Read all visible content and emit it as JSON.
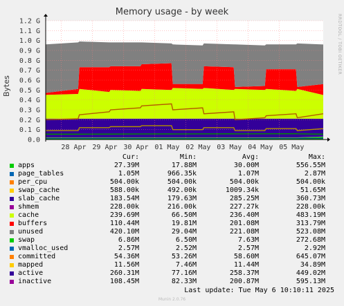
{
  "chart_data": {
    "type": "area",
    "title": "Memory usage - by week",
    "ylabel": "Bytes",
    "side_text": "RRDTOOL / TOBI OETIKER",
    "ylim": [
      0,
      1.2
    ],
    "yticks": [
      {
        "v": 0.0,
        "label": "0.0"
      },
      {
        "v": 0.1,
        "label": "0.1 G"
      },
      {
        "v": 0.2,
        "label": "0.2 G"
      },
      {
        "v": 0.3,
        "label": "0.3 G"
      },
      {
        "v": 0.4,
        "label": "0.4 G"
      },
      {
        "v": 0.5,
        "label": "0.5 G"
      },
      {
        "v": 0.6,
        "label": "0.6 G"
      },
      {
        "v": 0.7,
        "label": "0.7 G"
      },
      {
        "v": 0.8,
        "label": "0.8 G"
      },
      {
        "v": 0.9,
        "label": "0.9 G"
      },
      {
        "v": 1.0,
        "label": "1.0 G"
      },
      {
        "v": 1.1,
        "label": "1.1 G"
      },
      {
        "v": 1.2,
        "label": "1.2 G"
      }
    ],
    "x_start": "2025-04-27T12:00",
    "x_end": "2025-05-06T10:00",
    "xticks": [
      {
        "t": "2025-04-28T00:00",
        "label": "28 Apr"
      },
      {
        "t": "2025-04-29T00:00",
        "label": "29 Apr"
      },
      {
        "t": "2025-04-30T00:00",
        "label": "30 Apr"
      },
      {
        "t": "2025-05-01T00:00",
        "label": "01 May"
      },
      {
        "t": "2025-05-02T00:00",
        "label": "02 May"
      },
      {
        "t": "2025-05-03T00:00",
        "label": "03 May"
      },
      {
        "t": "2025-05-04T00:00",
        "label": "04 May"
      },
      {
        "t": "2025-05-05T00:00",
        "label": "05 May"
      }
    ],
    "x": [
      "2025-04-27T12:00",
      "2025-04-28T13:00",
      "2025-04-28T14:00",
      "2025-04-29T13:00",
      "2025-04-29T14:00",
      "2025-04-30T13:00",
      "2025-04-30T14:00",
      "2025-05-01T13:00",
      "2025-05-01T14:00",
      "2025-05-02T13:00",
      "2025-05-02T14:00",
      "2025-05-03T13:00",
      "2025-05-03T14:00",
      "2025-05-04T13:00",
      "2025-05-04T14:00",
      "2025-05-05T13:00",
      "2025-05-05T14:00",
      "2025-05-06T10:00"
    ],
    "stack": [
      {
        "name": "apps",
        "color": "#00cc00",
        "values": [
          0.018,
          0.018,
          0.018,
          0.018,
          0.018,
          0.018,
          0.018,
          0.018,
          0.018,
          0.018,
          0.018,
          0.018,
          0.018,
          0.018,
          0.018,
          0.018,
          0.018,
          0.027
        ]
      },
      {
        "name": "page_tables",
        "color": "#0066b3",
        "values": [
          0.001,
          0.001,
          0.001,
          0.001,
          0.001,
          0.001,
          0.001,
          0.001,
          0.001,
          0.001,
          0.001,
          0.001,
          0.001,
          0.001,
          0.001,
          0.001,
          0.001,
          0.001
        ]
      },
      {
        "name": "per_cpu",
        "color": "#ff8000",
        "values": [
          0.001,
          0.001,
          0.001,
          0.001,
          0.001,
          0.001,
          0.001,
          0.001,
          0.001,
          0.001,
          0.001,
          0.001,
          0.001,
          0.001,
          0.001,
          0.001,
          0.001,
          0.001
        ]
      },
      {
        "name": "swap_cache",
        "color": "#ffcc00",
        "values": [
          0.0005,
          0.0005,
          0.0005,
          0.0005,
          0.0005,
          0.0005,
          0.0005,
          0.0005,
          0.0005,
          0.0005,
          0.0005,
          0.0005,
          0.0005,
          0.0005,
          0.0005,
          0.0005,
          0.0005,
          0.0006
        ]
      },
      {
        "name": "slab_cache",
        "color": "#330099",
        "values": [
          0.19,
          0.19,
          0.19,
          0.19,
          0.19,
          0.19,
          0.19,
          0.19,
          0.19,
          0.19,
          0.19,
          0.19,
          0.19,
          0.19,
          0.19,
          0.19,
          0.19,
          0.18
        ]
      },
      {
        "name": "shmem",
        "color": "#990099",
        "values": [
          0.0002,
          0.0002,
          0.0002,
          0.0002,
          0.0002,
          0.0002,
          0.0002,
          0.0002,
          0.0002,
          0.0002,
          0.0002,
          0.0002,
          0.0002,
          0.0002,
          0.0002,
          0.0002,
          0.0002,
          0.0002
        ]
      },
      {
        "name": "cache",
        "color": "#ccff00",
        "values": [
          0.24,
          0.25,
          0.3,
          0.27,
          0.29,
          0.28,
          0.3,
          0.29,
          0.31,
          0.3,
          0.31,
          0.29,
          0.3,
          0.29,
          0.3,
          0.28,
          0.3,
          0.24
        ]
      },
      {
        "name": "buffers",
        "color": "#ff0000",
        "values": [
          0.02,
          0.05,
          0.22,
          0.25,
          0.24,
          0.25,
          0.25,
          0.27,
          0.04,
          0.05,
          0.22,
          0.23,
          0.02,
          0.04,
          0.2,
          0.22,
          0.02,
          0.11
        ]
      },
      {
        "name": "unused",
        "color": "#808080",
        "values": [
          0.49,
          0.47,
          0.26,
          0.25,
          0.24,
          0.24,
          0.22,
          0.2,
          0.4,
          0.39,
          0.23,
          0.23,
          0.43,
          0.41,
          0.25,
          0.25,
          0.44,
          0.4
        ]
      }
    ],
    "lines": [
      {
        "name": "committed",
        "color": "#008f00",
        "values": [
          0.054,
          0.054,
          0.054,
          0.055,
          0.055,
          0.056,
          0.056,
          0.057,
          0.056,
          0.057,
          0.057,
          0.058,
          0.057,
          0.058,
          0.058,
          0.059,
          0.058,
          0.054
        ]
      },
      {
        "name": "mapped",
        "color": "#00487d",
        "values": [
          0.011,
          0.011,
          0.011,
          0.011,
          0.011,
          0.011,
          0.011,
          0.011,
          0.011,
          0.011,
          0.011,
          0.011,
          0.011,
          0.011,
          0.011,
          0.011,
          0.011,
          0.012
        ]
      },
      {
        "name": "active",
        "color": "#b35a00",
        "values": [
          0.2,
          0.21,
          0.25,
          0.28,
          0.3,
          0.32,
          0.34,
          0.36,
          0.3,
          0.32,
          0.26,
          0.28,
          0.2,
          0.22,
          0.24,
          0.26,
          0.22,
          0.26
        ]
      },
      {
        "name": "inactive",
        "color": "#b38f00",
        "values": [
          0.09,
          0.09,
          0.12,
          0.12,
          0.13,
          0.13,
          0.14,
          0.14,
          0.1,
          0.1,
          0.12,
          0.12,
          0.09,
          0.09,
          0.11,
          0.11,
          0.09,
          0.11
        ]
      }
    ],
    "legend_header": [
      "Cur:",
      "Min:",
      "Avg:",
      "Max:"
    ],
    "legend": [
      {
        "name": "apps",
        "color": "#00cc00",
        "cur": "27.39M",
        "min": "17.88M",
        "avg": "30.00M",
        "max": "556.55M"
      },
      {
        "name": "page_tables",
        "color": "#0066b3",
        "cur": "1.05M",
        "min": "966.35k",
        "avg": "1.07M",
        "max": "2.87M"
      },
      {
        "name": "per_cpu",
        "color": "#ff8000",
        "cur": "504.00k",
        "min": "504.00k",
        "avg": "504.00k",
        "max": "504.00k"
      },
      {
        "name": "swap_cache",
        "color": "#ffcc00",
        "cur": "588.00k",
        "min": "492.00k",
        "avg": "1009.34k",
        "max": "51.65M"
      },
      {
        "name": "slab_cache",
        "color": "#330099",
        "cur": "183.54M",
        "min": "179.63M",
        "avg": "285.25M",
        "max": "360.73M"
      },
      {
        "name": "shmem",
        "color": "#990099",
        "cur": "228.00k",
        "min": "216.00k",
        "avg": "227.27k",
        "max": "228.00k"
      },
      {
        "name": "cache",
        "color": "#ccff00",
        "cur": "239.69M",
        "min": "66.50M",
        "avg": "236.40M",
        "max": "483.19M"
      },
      {
        "name": "buffers",
        "color": "#ff0000",
        "cur": "110.44M",
        "min": "19.81M",
        "avg": "201.08M",
        "max": "313.79M"
      },
      {
        "name": "unused",
        "color": "#808080",
        "cur": "420.10M",
        "min": "29.04M",
        "avg": "221.08M",
        "max": "523.08M"
      },
      {
        "name": "swap",
        "color": "#00cc00",
        "cur": "6.86M",
        "min": "6.50M",
        "avg": "7.63M",
        "max": "272.68M"
      },
      {
        "name": "vmalloc_used",
        "color": "#0066b3",
        "cur": "2.57M",
        "min": "2.52M",
        "avg": "2.57M",
        "max": "2.92M"
      },
      {
        "name": "committed",
        "color": "#ff8000",
        "cur": "54.36M",
        "min": "53.26M",
        "avg": "58.60M",
        "max": "645.07M"
      },
      {
        "name": "mapped",
        "color": "#ffcc00",
        "cur": "11.56M",
        "min": "7.46M",
        "avg": "11.44M",
        "max": "34.89M"
      },
      {
        "name": "active",
        "color": "#330099",
        "cur": "260.31M",
        "min": "77.16M",
        "avg": "258.37M",
        "max": "449.02M"
      },
      {
        "name": "inactive",
        "color": "#990099",
        "cur": "108.45M",
        "min": "82.33M",
        "avg": "200.87M",
        "max": "595.13M"
      }
    ],
    "last_update": "Last update:  Tue May  6 10:10:11 2025",
    "footer_credit": "Munin 2.0.76"
  }
}
